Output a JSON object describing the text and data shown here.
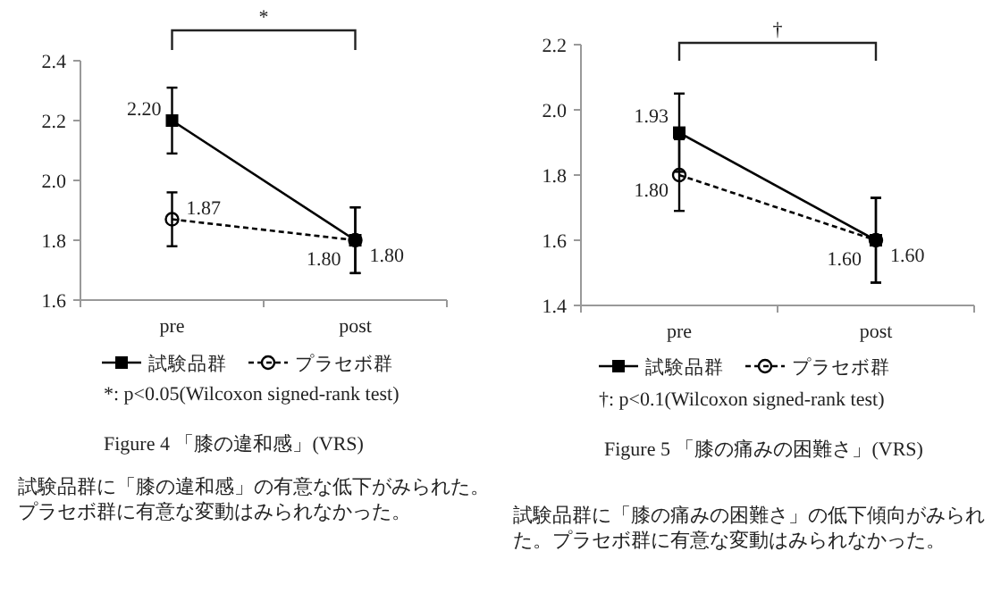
{
  "chart_data": [
    {
      "type": "line",
      "title": "Figure 4 「膝の違和感」(VRS)",
      "categories": [
        "pre",
        "post"
      ],
      "series": [
        {
          "name": "試験品群",
          "color": "#000000",
          "values": [
            2.2,
            1.8
          ],
          "value_labels": [
            "2.20",
            "1.80"
          ],
          "errors": [
            0.11,
            0.11
          ],
          "marker": "square",
          "line_style": "solid"
        },
        {
          "name": "プラセボ群",
          "color": "#000000",
          "values": [
            1.87,
            1.8
          ],
          "value_labels": [
            "1.87",
            "1.80"
          ],
          "errors": [
            0.09,
            0.11
          ],
          "marker": "circle",
          "line_style": "dashed"
        }
      ],
      "ylim": [
        1.6,
        2.4
      ],
      "yticks": [
        {
          "value": 1.6,
          "label": "1.6"
        },
        {
          "value": 1.8,
          "label": "1.8"
        },
        {
          "value": 2.0,
          "label": "2.0"
        },
        {
          "value": 2.2,
          "label": "2.2"
        },
        {
          "value": 2.4,
          "label": "2.4"
        }
      ],
      "grid": false,
      "legend": "bottom",
      "annotations": [
        "*",
        "*: p<0.05(Wilcoxon signed-rank test)",
        "試験品群に「膝の違和感」の有意な低下がみられた。プラセボ群に有意な変動はみられなかった。"
      ]
    },
    {
      "type": "line",
      "title": "Figure 5 「膝の痛みの困難さ」(VRS)",
      "categories": [
        "pre",
        "post"
      ],
      "series": [
        {
          "name": "試験品群",
          "color": "#000000",
          "values": [
            1.93,
            1.6
          ],
          "value_labels": [
            "1.93",
            "1.60"
          ],
          "errors": [
            0.12,
            0.13
          ],
          "marker": "square",
          "line_style": "solid"
        },
        {
          "name": "プラセボ群",
          "color": "#000000",
          "values": [
            1.8,
            1.6
          ],
          "value_labels": [
            "1.80",
            "1.60"
          ],
          "errors": [
            0.11,
            0.13
          ],
          "marker": "circle",
          "line_style": "dashed"
        }
      ],
      "ylim": [
        1.4,
        2.2
      ],
      "yticks": [
        {
          "value": 1.4,
          "label": "1.4"
        },
        {
          "value": 1.6,
          "label": "1.6"
        },
        {
          "value": 1.8,
          "label": "1.8"
        },
        {
          "value": 2.0,
          "label": "2.0"
        },
        {
          "value": 2.2,
          "label": "2.2"
        }
      ],
      "grid": false,
      "legend": "bottom",
      "annotations": [
        "†",
        "†: p<0.1(Wilcoxon signed-rank test)",
        "試験品群に「膝の痛みの困難さ」の低下傾向がみられた。プラセボ群に有意な変動はみられなかった。"
      ]
    }
  ]
}
